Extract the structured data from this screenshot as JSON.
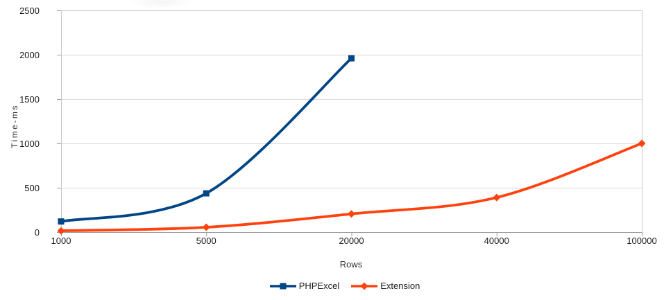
{
  "chart_data": {
    "type": "line",
    "title": "",
    "xlabel": "Rows",
    "ylabel": "Time-ms",
    "categories": [
      "1000",
      "5000",
      "20000",
      "40000",
      "100000"
    ],
    "y_ticks": [
      0,
      500,
      1000,
      1500,
      2000,
      2500
    ],
    "ylim": [
      0,
      2500
    ],
    "grid": "horizontal",
    "smooth_lines": true,
    "legend_position": "bottom-center",
    "series": [
      {
        "name": "PHPExcel",
        "color": "#004586",
        "marker": "square",
        "values": [
          120,
          437,
          1960
        ]
      },
      {
        "name": "Extension",
        "color": "#ff420e",
        "marker": "diamond",
        "values": [
          15,
          55,
          205,
          390,
          1000
        ]
      }
    ]
  },
  "colors": {
    "background": "#ffffff",
    "grid": "#d9d9d9",
    "plot_border": "#c6c6c6",
    "axis": "#999999",
    "tick_label": "#1a1a1a",
    "axis_title": "#333333"
  }
}
